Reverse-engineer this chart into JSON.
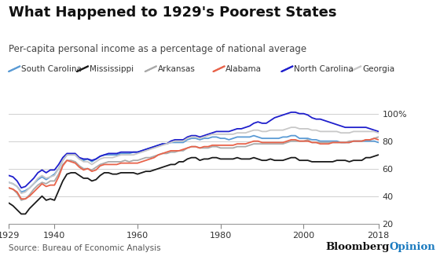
{
  "title": "What Happened to 1929's Poorest States",
  "subtitle": "Per-capita personal income as a percentage of national average",
  "source": "Source: Bureau of Economic Analysis",
  "branding_black": "Bloomberg",
  "branding_blue": "Opinion",
  "years": [
    1929,
    1930,
    1931,
    1932,
    1933,
    1934,
    1935,
    1936,
    1937,
    1938,
    1939,
    1940,
    1941,
    1942,
    1943,
    1944,
    1945,
    1946,
    1947,
    1948,
    1949,
    1950,
    1951,
    1952,
    1953,
    1954,
    1955,
    1956,
    1957,
    1958,
    1959,
    1960,
    1961,
    1962,
    1963,
    1964,
    1965,
    1966,
    1967,
    1968,
    1969,
    1970,
    1971,
    1972,
    1973,
    1974,
    1975,
    1976,
    1977,
    1978,
    1979,
    1980,
    1981,
    1982,
    1983,
    1984,
    1985,
    1986,
    1987,
    1988,
    1989,
    1990,
    1991,
    1992,
    1993,
    1994,
    1995,
    1996,
    1997,
    1998,
    1999,
    2000,
    2001,
    2002,
    2003,
    2004,
    2005,
    2006,
    2007,
    2008,
    2009,
    2010,
    2011,
    2012,
    2013,
    2014,
    2015,
    2016,
    2017,
    2018
  ],
  "south_carolina": [
    50,
    49,
    47,
    43,
    44,
    46,
    49,
    52,
    54,
    52,
    54,
    56,
    60,
    66,
    70,
    70,
    70,
    67,
    66,
    67,
    65,
    67,
    69,
    70,
    70,
    70,
    70,
    71,
    71,
    71,
    72,
    72,
    73,
    74,
    75,
    76,
    77,
    78,
    78,
    79,
    79,
    79,
    79,
    81,
    82,
    82,
    81,
    82,
    82,
    83,
    83,
    82,
    82,
    81,
    82,
    83,
    83,
    83,
    83,
    84,
    83,
    82,
    82,
    82,
    82,
    82,
    83,
    83,
    84,
    84,
    82,
    82,
    82,
    81,
    81,
    80,
    80,
    80,
    80,
    80,
    79,
    79,
    79,
    80,
    80,
    80,
    80,
    80,
    80,
    79
  ],
  "mississippi": [
    35,
    33,
    30,
    27,
    27,
    31,
    34,
    37,
    40,
    37,
    38,
    37,
    44,
    51,
    56,
    57,
    57,
    55,
    53,
    53,
    51,
    52,
    55,
    57,
    57,
    56,
    56,
    57,
    57,
    57,
    57,
    56,
    57,
    58,
    58,
    59,
    60,
    61,
    62,
    63,
    63,
    65,
    65,
    67,
    68,
    68,
    66,
    67,
    67,
    68,
    68,
    67,
    67,
    67,
    67,
    68,
    67,
    67,
    67,
    68,
    67,
    66,
    66,
    67,
    66,
    66,
    66,
    67,
    68,
    68,
    66,
    66,
    66,
    65,
    65,
    65,
    65,
    65,
    65,
    66,
    66,
    66,
    65,
    66,
    66,
    66,
    68,
    68,
    69,
    70
  ],
  "arkansas": [
    46,
    45,
    42,
    37,
    38,
    41,
    45,
    48,
    50,
    49,
    51,
    51,
    56,
    63,
    66,
    66,
    65,
    62,
    60,
    60,
    59,
    61,
    63,
    64,
    65,
    65,
    65,
    65,
    66,
    65,
    66,
    66,
    67,
    68,
    68,
    69,
    70,
    71,
    71,
    72,
    72,
    73,
    73,
    75,
    76,
    76,
    75,
    75,
    75,
    76,
    76,
    75,
    75,
    75,
    75,
    76,
    76,
    76,
    77,
    78,
    78,
    78,
    78,
    78,
    78,
    78,
    78,
    79,
    80,
    80,
    80,
    80,
    81,
    79,
    79,
    79,
    79,
    79,
    79,
    79,
    79,
    79,
    80,
    80,
    80,
    80,
    81,
    81,
    82,
    83
  ],
  "alabama": [
    46,
    45,
    43,
    38,
    38,
    40,
    43,
    46,
    49,
    47,
    48,
    48,
    54,
    62,
    66,
    65,
    64,
    61,
    59,
    60,
    58,
    59,
    62,
    63,
    63,
    63,
    63,
    64,
    64,
    64,
    64,
    64,
    65,
    66,
    67,
    68,
    70,
    71,
    72,
    73,
    73,
    73,
    74,
    75,
    76,
    76,
    75,
    76,
    76,
    77,
    77,
    77,
    77,
    77,
    77,
    78,
    78,
    78,
    79,
    80,
    80,
    79,
    79,
    79,
    79,
    79,
    79,
    80,
    81,
    81,
    80,
    80,
    80,
    79,
    79,
    78,
    78,
    78,
    79,
    79,
    79,
    79,
    79,
    80,
    80,
    80,
    81,
    81,
    82,
    81
  ],
  "north_carolina": [
    55,
    54,
    51,
    46,
    47,
    50,
    53,
    57,
    59,
    57,
    59,
    59,
    63,
    68,
    71,
    71,
    71,
    68,
    67,
    67,
    66,
    67,
    69,
    70,
    71,
    71,
    71,
    72,
    72,
    72,
    72,
    72,
    73,
    74,
    75,
    76,
    77,
    78,
    78,
    80,
    81,
    81,
    81,
    83,
    84,
    84,
    83,
    84,
    85,
    86,
    87,
    87,
    87,
    87,
    88,
    89,
    89,
    90,
    91,
    93,
    94,
    93,
    93,
    95,
    97,
    98,
    99,
    100,
    101,
    101,
    100,
    100,
    99,
    97,
    96,
    96,
    95,
    94,
    93,
    92,
    91,
    90,
    90,
    90,
    90,
    90,
    90,
    89,
    88,
    87
  ],
  "georgia": [
    50,
    49,
    47,
    42,
    43,
    46,
    49,
    53,
    55,
    53,
    54,
    55,
    60,
    66,
    70,
    70,
    70,
    67,
    65,
    65,
    63,
    65,
    67,
    68,
    68,
    68,
    69,
    70,
    70,
    70,
    70,
    71,
    72,
    73,
    74,
    75,
    76,
    77,
    78,
    79,
    80,
    80,
    80,
    82,
    83,
    83,
    82,
    83,
    84,
    85,
    85,
    85,
    85,
    85,
    85,
    86,
    86,
    86,
    87,
    88,
    88,
    87,
    87,
    88,
    88,
    88,
    88,
    89,
    90,
    90,
    89,
    89,
    89,
    88,
    88,
    87,
    87,
    87,
    87,
    87,
    86,
    86,
    86,
    87,
    87,
    87,
    87,
    87,
    87,
    86
  ],
  "colors": {
    "south_carolina": "#5b9bd5",
    "mississippi": "#1a1a1a",
    "arkansas": "#aaaaaa",
    "alabama": "#e8634a",
    "north_carolina": "#1f1fcc",
    "georgia": "#c8c8c8"
  },
  "legend_labels": [
    "South Carolina",
    "Mississippi",
    "Arkansas",
    "Alabama",
    "North Carolina",
    "Georgia"
  ],
  "legend_keys": [
    "south_carolina",
    "mississippi",
    "arkansas",
    "alabama",
    "north_carolina",
    "georgia"
  ],
  "ylim": [
    20,
    107
  ],
  "yticks": [
    20,
    40,
    60,
    80,
    100
  ],
  "ytick_labels": [
    "20",
    "40",
    "60",
    "80",
    "100%"
  ],
  "xticks": [
    1929,
    1940,
    1960,
    1980,
    2000,
    2018
  ],
  "background_color": "#ffffff",
  "grid_color": "#d0d0d0",
  "title_fontsize": 13,
  "subtitle_fontsize": 8.5,
  "legend_fontsize": 7.5,
  "tick_fontsize": 8,
  "source_fontsize": 7.5,
  "branding_fontsize": 9.5
}
